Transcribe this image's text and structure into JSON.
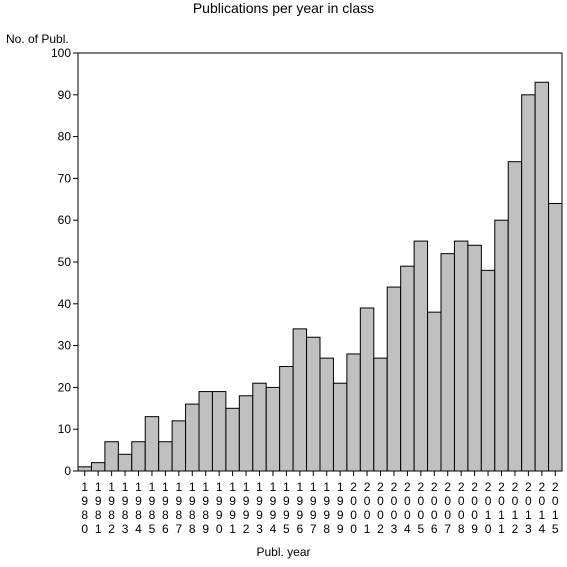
{
  "chart_data": {
    "type": "bar",
    "title": "Publications per year in class",
    "ylabel": "No. of Publ.",
    "xlabel": "Publ. year",
    "ylim": [
      0,
      100
    ],
    "yticks": [
      0,
      10,
      20,
      30,
      40,
      50,
      60,
      70,
      80,
      90,
      100
    ],
    "grid": false,
    "bar_color": "#c0c0c0",
    "edge_color": "#000000",
    "categories": [
      "1980",
      "1981",
      "1982",
      "1983",
      "1984",
      "1985",
      "1986",
      "1987",
      "1988",
      "1989",
      "1990",
      "1991",
      "1992",
      "1993",
      "1994",
      "1995",
      "1996",
      "1997",
      "1998",
      "1999",
      "2000",
      "2001",
      "2002",
      "2003",
      "2004",
      "2005",
      "2006",
      "2007",
      "2008",
      "2009",
      "2010",
      "2011",
      "2012",
      "2013",
      "2014",
      "2015"
    ],
    "values": [
      1,
      2,
      7,
      4,
      7,
      13,
      7,
      12,
      16,
      19,
      19,
      15,
      18,
      21,
      20,
      25,
      34,
      32,
      27,
      21,
      28,
      39,
      27,
      44,
      49,
      55,
      38,
      52,
      55,
      54,
      48,
      60,
      74,
      90,
      93,
      64
    ]
  }
}
